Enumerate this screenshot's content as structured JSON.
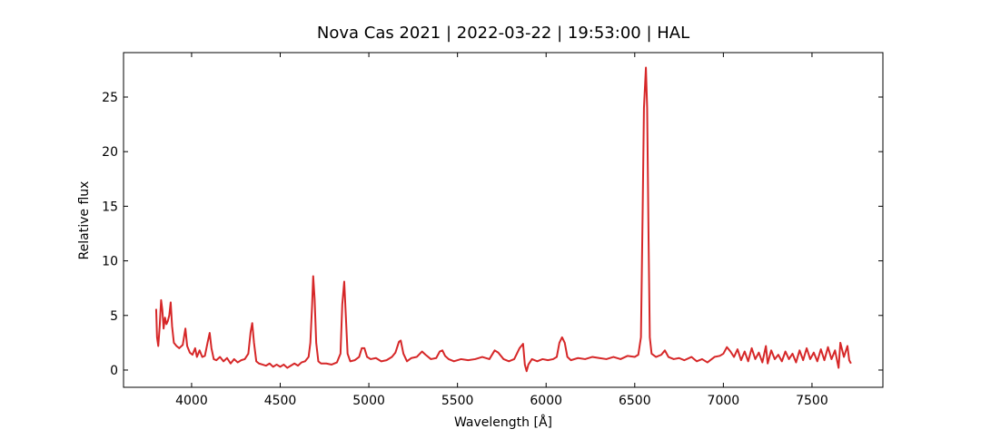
{
  "chart_data": {
    "type": "line",
    "title": "Nova Cas 2021 | 2022-03-22 | 19:53:00 | HAL",
    "x_label": "Wavelength [Å]",
    "y_label": "Relative flux",
    "x": [
      3800,
      3805,
      3812,
      3820,
      3828,
      3835,
      3842,
      3850,
      3858,
      3866,
      3874,
      3882,
      3890,
      3900,
      3915,
      3930,
      3950,
      3965,
      3975,
      3990,
      4005,
      4020,
      4030,
      4045,
      4060,
      4075,
      4090,
      4102,
      4112,
      4125,
      4140,
      4160,
      4180,
      4200,
      4220,
      4240,
      4260,
      4280,
      4300,
      4320,
      4333,
      4342,
      4352,
      4365,
      4380,
      4400,
      4420,
      4440,
      4460,
      4480,
      4500,
      4520,
      4540,
      4560,
      4580,
      4600,
      4620,
      4640,
      4660,
      4670,
      4680,
      4686,
      4694,
      4703,
      4715,
      4730,
      4760,
      4790,
      4820,
      4840,
      4850,
      4861,
      4870,
      4880,
      4895,
      4920,
      4945,
      4960,
      4975,
      4990,
      5010,
      5040,
      5070,
      5100,
      5130,
      5150,
      5170,
      5180,
      5195,
      5215,
      5240,
      5270,
      5300,
      5320,
      5350,
      5380,
      5400,
      5415,
      5430,
      5450,
      5480,
      5520,
      5560,
      5600,
      5640,
      5680,
      5710,
      5730,
      5760,
      5790,
      5820,
      5850,
      5870,
      5880,
      5890,
      5900,
      5920,
      5950,
      5980,
      6010,
      6040,
      6060,
      6075,
      6090,
      6105,
      6120,
      6140,
      6180,
      6220,
      6260,
      6300,
      6340,
      6380,
      6420,
      6460,
      6500,
      6520,
      6535,
      6545,
      6552,
      6563,
      6570,
      6578,
      6585,
      6595,
      6620,
      6650,
      6670,
      6690,
      6720,
      6750,
      6780,
      6820,
      6850,
      6880,
      6910,
      6950,
      6980,
      7000,
      7020,
      7040,
      7060,
      7080,
      7100,
      7120,
      7140,
      7160,
      7180,
      7200,
      7220,
      7240,
      7250,
      7270,
      7290,
      7310,
      7330,
      7350,
      7370,
      7390,
      7410,
      7430,
      7450,
      7470,
      7490,
      7510,
      7530,
      7550,
      7570,
      7590,
      7610,
      7630,
      7650,
      7660,
      7680,
      7700,
      7710,
      7720
    ],
    "series": [
      {
        "color": "#d62728",
        "values": [
          5.6,
          3.0,
          2.2,
          4.0,
          6.4,
          5.5,
          3.8,
          4.8,
          4.2,
          4.5,
          5.0,
          6.2,
          4.0,
          2.5,
          2.2,
          2.0,
          2.3,
          3.8,
          2.2,
          1.6,
          1.4,
          2.0,
          1.2,
          1.8,
          1.2,
          1.3,
          2.5,
          3.4,
          2.0,
          1.0,
          0.9,
          1.2,
          0.8,
          1.1,
          0.6,
          1.0,
          0.7,
          0.9,
          1.0,
          1.5,
          3.5,
          4.3,
          2.5,
          0.8,
          0.6,
          0.5,
          0.4,
          0.6,
          0.3,
          0.5,
          0.3,
          0.5,
          0.2,
          0.4,
          0.6,
          0.4,
          0.7,
          0.8,
          1.2,
          2.5,
          6.0,
          8.6,
          6.5,
          2.5,
          0.8,
          0.6,
          0.6,
          0.5,
          0.7,
          1.5,
          6.0,
          8.1,
          5.0,
          1.5,
          0.8,
          0.9,
          1.2,
          2.0,
          2.0,
          1.2,
          1.0,
          1.1,
          0.8,
          0.9,
          1.2,
          1.6,
          2.6,
          2.7,
          1.5,
          0.8,
          1.1,
          1.2,
          1.7,
          1.4,
          1.0,
          1.1,
          1.7,
          1.8,
          1.3,
          1.0,
          0.8,
          1.0,
          0.9,
          1.0,
          1.2,
          1.0,
          1.8,
          1.6,
          1.0,
          0.8,
          1.0,
          2.0,
          2.4,
          0.5,
          -0.1,
          0.5,
          1.0,
          0.8,
          1.0,
          0.9,
          1.0,
          1.2,
          2.5,
          3.0,
          2.5,
          1.2,
          0.9,
          1.1,
          1.0,
          1.2,
          1.1,
          1.0,
          1.2,
          1.0,
          1.3,
          1.2,
          1.4,
          3.0,
          15,
          24,
          27.7,
          24,
          12,
          3.0,
          1.5,
          1.2,
          1.4,
          1.8,
          1.2,
          1.0,
          1.1,
          0.9,
          1.2,
          0.8,
          1.0,
          0.7,
          1.2,
          1.3,
          1.5,
          2.1,
          1.7,
          1.2,
          1.9,
          0.9,
          1.7,
          0.8,
          2.0,
          1.0,
          1.6,
          0.7,
          2.2,
          0.6,
          1.8,
          1.0,
          1.4,
          0.8,
          1.7,
          1.0,
          1.5,
          0.7,
          1.8,
          0.9,
          2.0,
          1.0,
          1.6,
          0.8,
          1.9,
          0.9,
          2.1,
          1.0,
          1.8,
          0.2,
          2.5,
          1.2,
          2.2,
          0.9,
          0.6
        ]
      }
    ],
    "xlim": [
      3616,
      7900
    ],
    "ylim": [
      -1.58,
      29.07
    ],
    "xticks": [
      4000,
      4500,
      5000,
      5500,
      6000,
      6500,
      7000,
      7500
    ],
    "yticks": [
      0,
      5,
      10,
      15,
      20,
      25
    ]
  }
}
